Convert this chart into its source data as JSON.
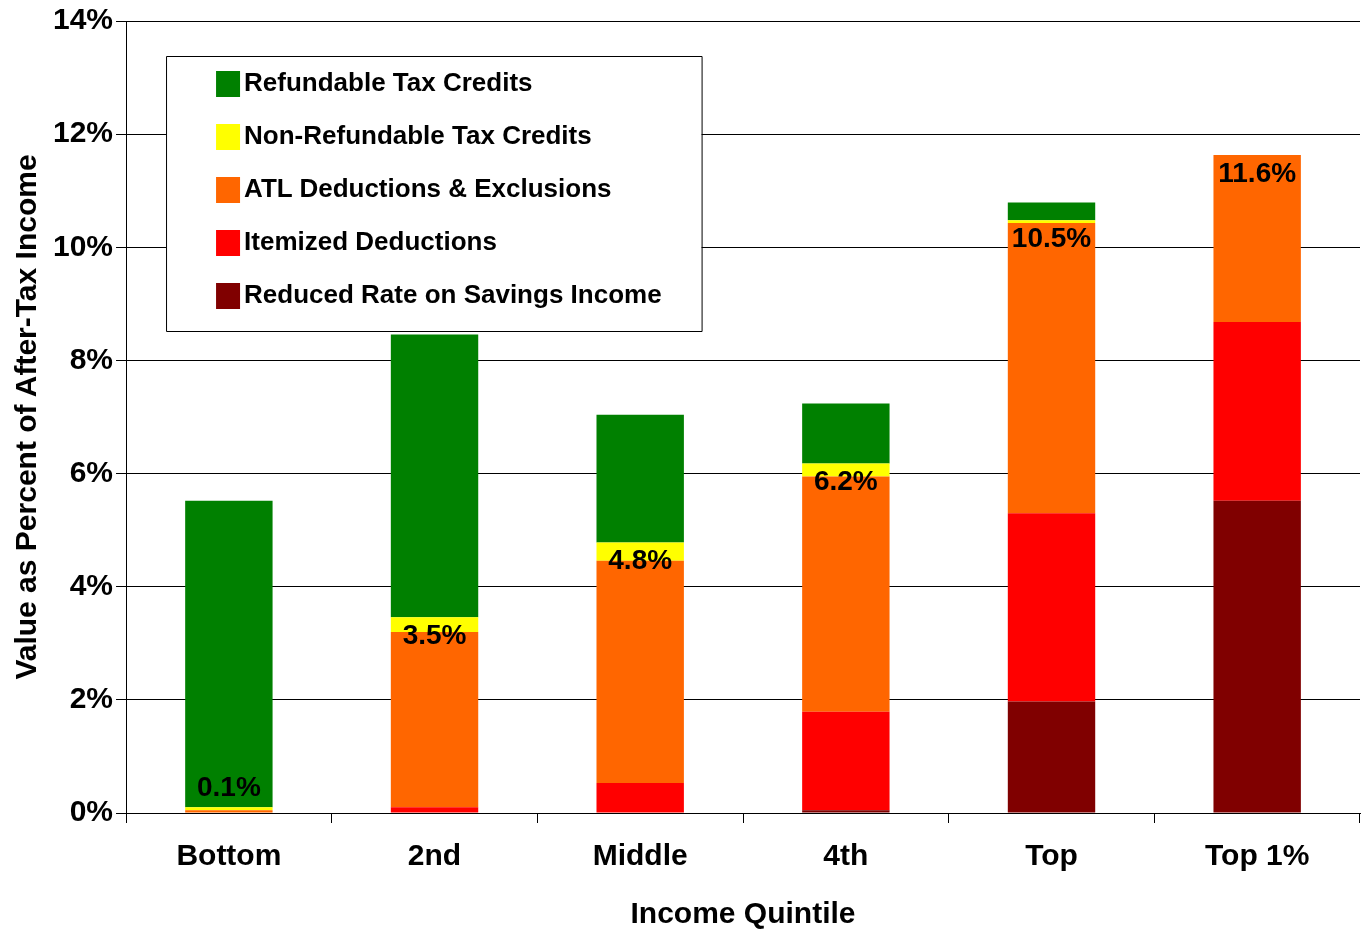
{
  "chart_data": {
    "type": "bar",
    "stacked": true,
    "xlabel": "Income Quintile",
    "ylabel": "Value as Percent of After-Tax Income",
    "categories": [
      "Bottom",
      "2nd",
      "Middle",
      "4th",
      "Top",
      "Top 1%"
    ],
    "series": [
      {
        "name": "Reduced Rate on Savings Income",
        "color": "#800000",
        "values": [
          0,
          0,
          0,
          0.05,
          1.97,
          5.52
        ]
      },
      {
        "name": "Itemized Deductions",
        "color": "#ff0000",
        "values": [
          0,
          0.1,
          0.53,
          1.74,
          3.33,
          3.16
        ]
      },
      {
        "name": "ATL Deductions & Exclusions",
        "color": "#ff6600",
        "values": [
          0.05,
          3.1,
          3.93,
          4.16,
          5.13,
          2.95
        ]
      },
      {
        "name": "Non-Refundable Tax Credits",
        "color": "#ffff00",
        "values": [
          0.05,
          0.26,
          0.32,
          0.23,
          0.05,
          0
        ]
      },
      {
        "name": "Refundable Tax Credits",
        "color": "#008000",
        "values": [
          5.42,
          5.0,
          2.26,
          1.06,
          0.31,
          0
        ]
      }
    ],
    "ylim": [
      0,
      14
    ],
    "yticks": [
      {
        "value": 0,
        "label": "0%"
      },
      {
        "value": 2,
        "label": "2%"
      },
      {
        "value": 4,
        "label": "4%"
      },
      {
        "value": 6,
        "label": "6%"
      },
      {
        "value": 8,
        "label": "8%"
      },
      {
        "value": 10,
        "label": "10%"
      },
      {
        "value": 12,
        "label": "12%"
      },
      {
        "value": 14,
        "label": "14%"
      }
    ],
    "grid": "y",
    "legend": "top left",
    "annotations": [
      {
        "text": "0.1%",
        "x": "Bottom",
        "y": 0.1
      },
      {
        "text": "3.5%",
        "x": "2nd",
        "y": 3.46
      },
      {
        "text": "4.8%",
        "x": "Middle",
        "y": 4.78
      },
      {
        "text": "6.2%",
        "x": "4th",
        "y": 6.18
      },
      {
        "text": "10.5%",
        "x": "Top",
        "y": 10.48
      },
      {
        "text": "11.6%",
        "x": "Top 1%",
        "y": 11.63
      }
    ]
  }
}
